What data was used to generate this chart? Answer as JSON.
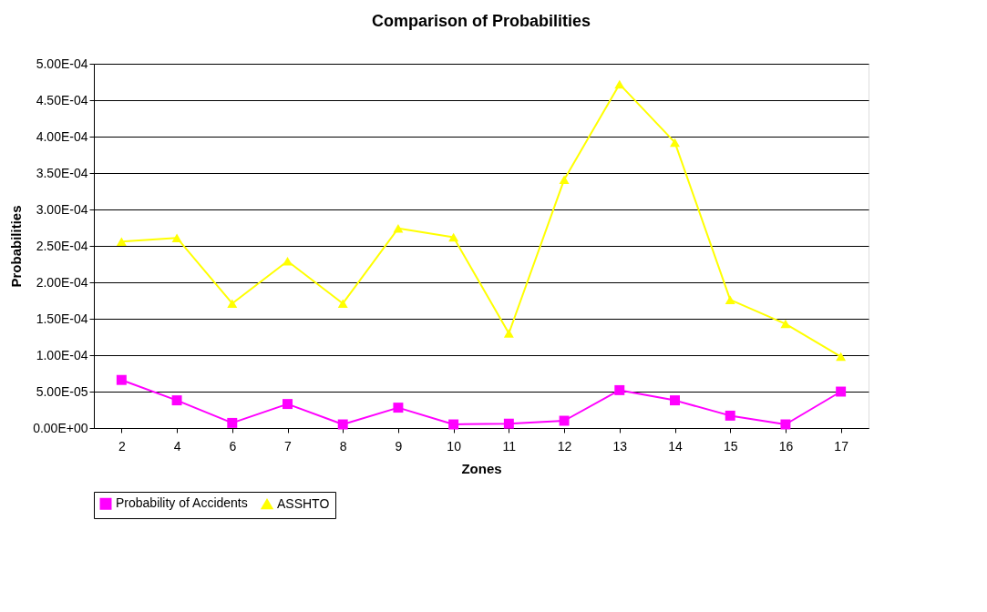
{
  "chart_data": {
    "type": "line",
    "title": "Comparison of Probabilities",
    "xlabel": "Zones",
    "ylabel": "Probabilities",
    "categories": [
      "2",
      "4",
      "6",
      "7",
      "8",
      "9",
      "10",
      "11",
      "12",
      "13",
      "14",
      "15",
      "16",
      "17"
    ],
    "series": [
      {
        "name": "Probability of Accidents",
        "color": "#ff00ff",
        "marker": "square",
        "values": [
          6.6e-05,
          3.8e-05,
          7e-06,
          3.3e-05,
          5e-06,
          2.8e-05,
          5e-06,
          6e-06,
          1e-05,
          5.2e-05,
          3.8e-05,
          1.7e-05,
          5e-06,
          5e-05
        ]
      },
      {
        "name": "ASSHTO",
        "color": "#ffff00",
        "marker": "triangle",
        "values": [
          0.000256,
          0.000261,
          0.000171,
          0.000229,
          0.000171,
          0.000274,
          0.000262,
          0.00013,
          0.000341,
          0.000472,
          0.000392,
          0.000176,
          0.000143,
          9.8e-05
        ]
      }
    ],
    "ylim": [
      0,
      0.0005
    ],
    "yticks": [
      {
        "value": 0,
        "label": "0.00E+00"
      },
      {
        "value": 5e-05,
        "label": "5.00E-05"
      },
      {
        "value": 0.0001,
        "label": "1.00E-04"
      },
      {
        "value": 0.00015,
        "label": "1.50E-04"
      },
      {
        "value": 0.0002,
        "label": "2.00E-04"
      },
      {
        "value": 0.00025,
        "label": "2.50E-04"
      },
      {
        "value": 0.0003,
        "label": "3.00E-04"
      },
      {
        "value": 0.00035,
        "label": "3.50E-04"
      },
      {
        "value": 0.0004,
        "label": "4.00E-04"
      },
      {
        "value": 0.00045,
        "label": "4.50E-04"
      },
      {
        "value": 0.0005,
        "label": "5.00E-04"
      }
    ],
    "grid": "y",
    "legend": "bottom",
    "line_style": "solid"
  }
}
